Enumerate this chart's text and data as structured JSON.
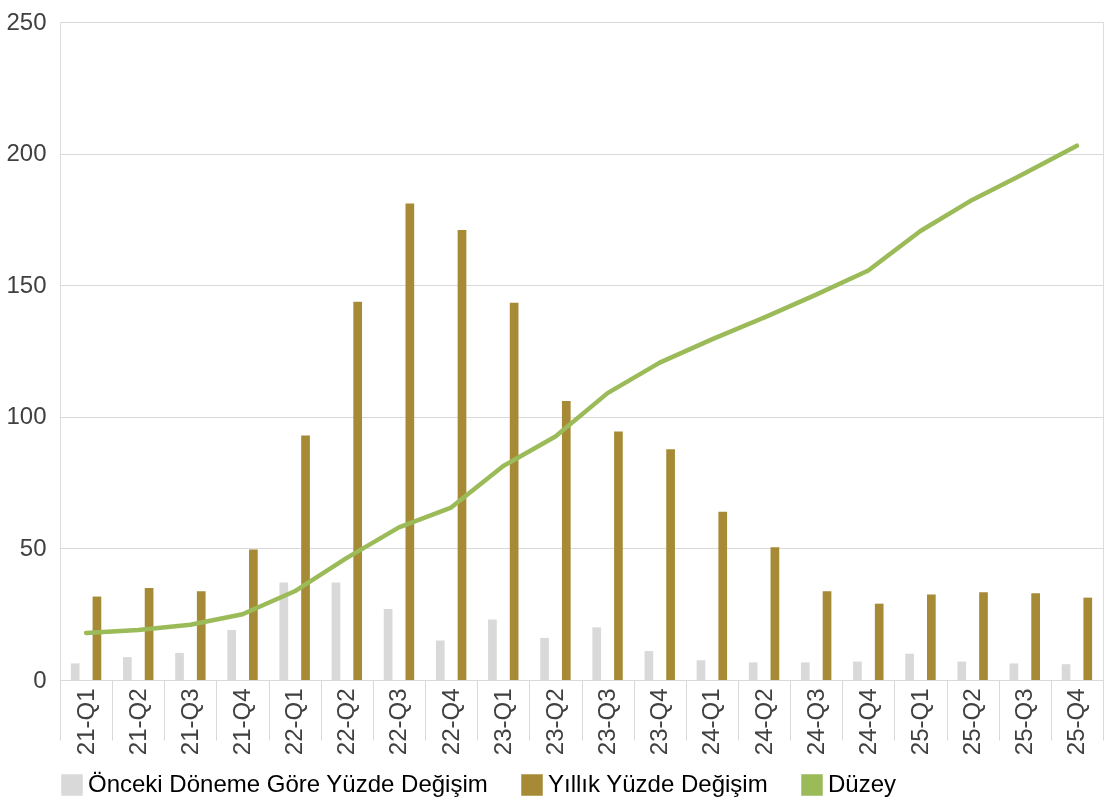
{
  "chart_data": {
    "type": "bar",
    "categories": [
      "21-Q1",
      "21-Q2",
      "21-Q3",
      "21-Q4",
      "22-Q1",
      "22-Q2",
      "22-Q3",
      "22-Q4",
      "23-Q1",
      "23-Q2",
      "23-Q3",
      "23-Q4",
      "24-Q1",
      "24-Q2",
      "24-Q3",
      "24-Q4",
      "25-Q1",
      "25-Q2",
      "25-Q3",
      "25-Q4"
    ],
    "series": [
      {
        "name": "Önceki Döneme Göre Yüzde Değişim",
        "color": "#d9d9d9",
        "values": [
          6.3,
          8.7,
          10.3,
          19,
          37,
          37,
          27,
          15,
          23,
          16,
          20,
          11,
          7.5,
          6.7,
          6.7,
          7,
          10,
          7,
          6.3,
          6
        ]
      },
      {
        "name": "Yıllık Yüzde Değişim",
        "color": "#a68a35",
        "values": [
          31.7,
          35,
          33.7,
          49.6,
          92.9,
          143.7,
          181,
          171,
          143.3,
          106,
          94.4,
          87.7,
          63.9,
          50.4,
          33.7,
          29,
          32.5,
          33.3,
          33,
          31.3
        ]
      },
      {
        "name": "Düzey",
        "type": "line",
        "color": "#9bbb59",
        "values": [
          17.9,
          19,
          21,
          25,
          33.7,
          46.4,
          58,
          65.5,
          81.3,
          92.5,
          109,
          120.6,
          129.4,
          137.7,
          146.4,
          155.6,
          170.6,
          182.5,
          192.5,
          203
        ]
      }
    ],
    "ylim": [
      0,
      250
    ],
    "yticks": [
      0,
      50,
      100,
      150,
      200,
      250
    ],
    "grid": "y",
    "legend": "bottom",
    "line_style": "solid",
    "marker": "none"
  }
}
